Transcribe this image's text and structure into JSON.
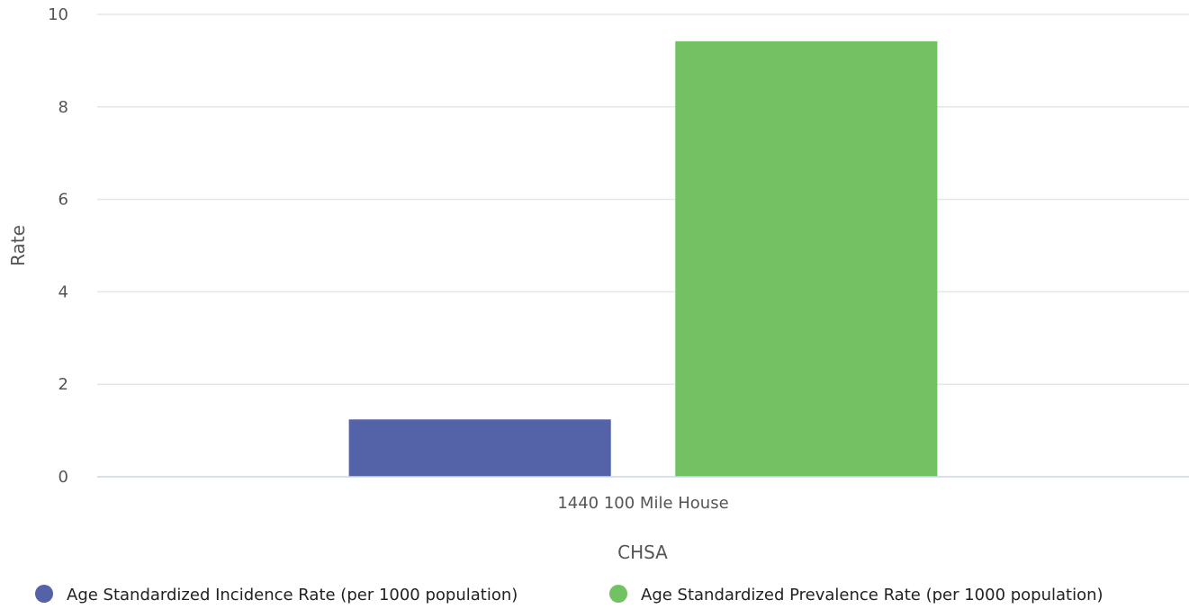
{
  "chart_data": {
    "type": "bar",
    "title": "",
    "xlabel": "CHSA",
    "ylabel": "Rate",
    "ylim": [
      0,
      10
    ],
    "yticks": [
      0,
      2,
      4,
      6,
      8,
      10
    ],
    "categories": [
      "1440 100 Mile House"
    ],
    "series": [
      {
        "name": "Age Standardized Incidence Rate (per 1000 population)",
        "color": "#5462a8",
        "values": [
          1.24
        ]
      },
      {
        "name": "Age Standardized Prevalence Rate (per 1000 population)",
        "color": "#72c163",
        "values": [
          9.42
        ]
      }
    ],
    "grid": true,
    "legend_position": "bottom"
  }
}
